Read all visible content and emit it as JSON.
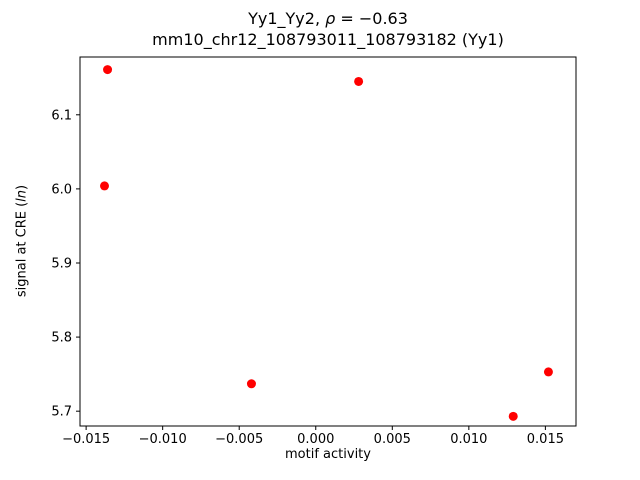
{
  "chart_data": {
    "type": "scatter",
    "title_line1": {
      "pre": "Yy1_Yy2, ",
      "rho": "ρ",
      "post": " = −0.63"
    },
    "title_line2": "mm10_chr12_108793011_108793182 (Yy1)",
    "xlabel": "motif activity",
    "ylabel": {
      "pre": "signal at CRE (",
      "italic": "ln",
      "post": ")"
    },
    "x_ticks": [
      -0.015,
      -0.01,
      -0.005,
      0.0,
      0.005,
      0.01,
      0.015
    ],
    "x_tick_labels": [
      "−0.015",
      "−0.010",
      "−0.005",
      "0.000",
      "0.005",
      "0.010",
      "0.015"
    ],
    "y_ticks": [
      5.7,
      5.8,
      5.9,
      6.0,
      6.1
    ],
    "y_tick_labels": [
      "5.7",
      "5.8",
      "5.9",
      "6.0",
      "6.1"
    ],
    "xlim": [
      -0.0154,
      0.017
    ],
    "ylim": [
      5.68,
      6.178
    ],
    "points": [
      {
        "x": -0.0136,
        "y": 6.161
      },
      {
        "x": -0.0138,
        "y": 6.004
      },
      {
        "x": 0.0028,
        "y": 6.145
      },
      {
        "x": -0.0042,
        "y": 5.737
      },
      {
        "x": 0.0152,
        "y": 5.753
      },
      {
        "x": 0.0129,
        "y": 5.693
      }
    ],
    "marker_color": "#ff0000",
    "marker_radius": 4.5,
    "grid": false,
    "legend": null,
    "axes_color": "#000000"
  }
}
